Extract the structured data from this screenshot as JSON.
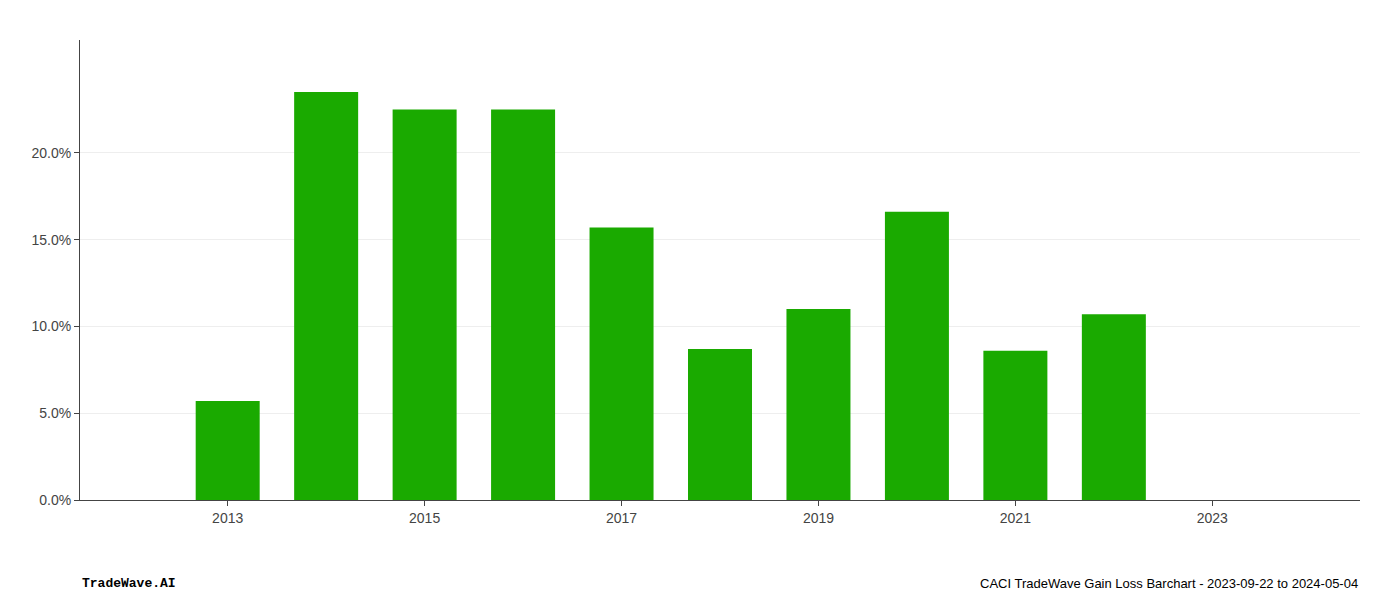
{
  "chart_data": {
    "type": "bar",
    "x": [
      2013,
      2014,
      2015,
      2016,
      2017,
      2018,
      2019,
      2020,
      2021,
      2022
    ],
    "values": [
      0.057,
      0.235,
      0.225,
      0.225,
      0.157,
      0.087,
      0.11,
      0.166,
      0.086,
      0.107
    ],
    "color": "#1aaa00",
    "xlim": [
      2011.5,
      2024.5
    ],
    "xticks": [
      2013,
      2015,
      2017,
      2019,
      2021,
      2023
    ],
    "ylim": [
      0,
      0.265
    ],
    "yticks": [
      {
        "value": 0.0,
        "label": "0.0%"
      },
      {
        "value": 0.05,
        "label": "5.0%"
      },
      {
        "value": 0.1,
        "label": "10.0%"
      },
      {
        "value": 0.15,
        "label": "15.0%"
      },
      {
        "value": 0.2,
        "label": "20.0%"
      }
    ],
    "grid": true,
    "annotations": [
      "TradeWave.AI",
      "CACI TradeWave Gain Loss Barchart - 2023-09-22 to 2024-05-04"
    ]
  }
}
